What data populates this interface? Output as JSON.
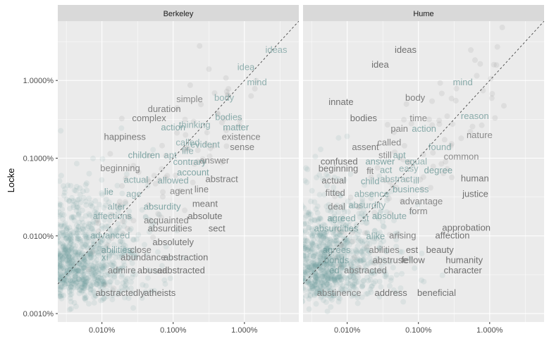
{
  "chart_data": {
    "type": "scatter",
    "ylabel": "Locke",
    "xlabel": "",
    "scale": "log10",
    "xlim": [
      0.0024,
      5.8
    ],
    "ylim": [
      0.00078,
      5.8
    ],
    "x_ticks": [
      0.01,
      0.1,
      1
    ],
    "x_tick_labels": [
      "0.010%",
      "0.100%",
      "1.000%"
    ],
    "y_ticks": [
      0.001,
      0.01,
      0.1,
      1
    ],
    "y_tick_labels": [
      "0.0010%",
      "0.0100%",
      "0.1000%",
      "1.0000%"
    ],
    "diagonal_reference": "y = x",
    "colors": {
      "panel_bg": "#ebebeb",
      "grid": "#ffffff",
      "strip_bg": "#d9d9d9",
      "points": "#6f9a9a",
      "word_near": "#5f8f8e",
      "word_far": "#707070"
    },
    "panels": [
      {
        "name": "Berkeley",
        "words": [
          {
            "text": "ideas",
            "x": 2.8,
            "y": 2.5
          },
          {
            "text": "idea",
            "x": 1.05,
            "y": 1.5
          },
          {
            "text": "mind",
            "x": 1.5,
            "y": 0.95
          },
          {
            "text": "body",
            "x": 0.52,
            "y": 0.6
          },
          {
            "text": "simple",
            "x": 0.17,
            "y": 0.58
          },
          {
            "text": "duration",
            "x": 0.075,
            "y": 0.43
          },
          {
            "text": "complex",
            "x": 0.046,
            "y": 0.33
          },
          {
            "text": "bodies",
            "x": 0.6,
            "y": 0.34
          },
          {
            "text": "thinking",
            "x": 0.2,
            "y": 0.27
          },
          {
            "text": "matter",
            "x": 0.76,
            "y": 0.25
          },
          {
            "text": "action",
            "x": 0.1,
            "y": 0.25
          },
          {
            "text": "happiness",
            "x": 0.021,
            "y": 0.19
          },
          {
            "text": "existence",
            "x": 0.9,
            "y": 0.19
          },
          {
            "text": "called",
            "x": 0.16,
            "y": 0.16
          },
          {
            "text": "evident",
            "x": 0.28,
            "y": 0.15
          },
          {
            "text": "sense",
            "x": 0.93,
            "y": 0.14
          },
          {
            "text": "life",
            "x": 0.16,
            "y": 0.125
          },
          {
            "text": "children",
            "x": 0.039,
            "y": 0.11
          },
          {
            "text": "apt",
            "x": 0.091,
            "y": 0.11
          },
          {
            "text": "answer",
            "x": 0.38,
            "y": 0.094
          },
          {
            "text": "contrary",
            "x": 0.17,
            "y": 0.09
          },
          {
            "text": "beginning",
            "x": 0.018,
            "y": 0.075
          },
          {
            "text": "account",
            "x": 0.19,
            "y": 0.066
          },
          {
            "text": "actual",
            "x": 0.03,
            "y": 0.053
          },
          {
            "text": "allowed",
            "x": 0.1,
            "y": 0.052
          },
          {
            "text": "abstract",
            "x": 0.48,
            "y": 0.054
          },
          {
            "text": "line",
            "x": 0.25,
            "y": 0.04
          },
          {
            "text": "lie",
            "x": 0.0125,
            "y": 0.037
          },
          {
            "text": "age",
            "x": 0.028,
            "y": 0.035
          },
          {
            "text": "agent",
            "x": 0.13,
            "y": 0.038
          },
          {
            "text": "meant",
            "x": 0.28,
            "y": 0.026
          },
          {
            "text": "alter",
            "x": 0.016,
            "y": 0.024
          },
          {
            "text": "absurdity",
            "x": 0.07,
            "y": 0.024
          },
          {
            "text": "affections",
            "x": 0.014,
            "y": 0.018
          },
          {
            "text": "absolute",
            "x": 0.28,
            "y": 0.018
          },
          {
            "text": "acquainted",
            "x": 0.08,
            "y": 0.016
          },
          {
            "text": "absurdities",
            "x": 0.09,
            "y": 0.0125
          },
          {
            "text": "sect",
            "x": 0.41,
            "y": 0.0125
          },
          {
            "text": "advanced",
            "x": 0.013,
            "y": 0.0102
          },
          {
            "text": "absolutely",
            "x": 0.1,
            "y": 0.0083
          },
          {
            "text": "abilities",
            "x": 0.016,
            "y": 0.0066
          },
          {
            "text": "close",
            "x": 0.035,
            "y": 0.0066
          },
          {
            "text": "xi",
            "x": 0.011,
            "y": 0.0053
          },
          {
            "text": "abundance",
            "x": 0.038,
            "y": 0.0053
          },
          {
            "text": "abstraction",
            "x": 0.15,
            "y": 0.0053
          },
          {
            "text": "admire",
            "x": 0.019,
            "y": 0.0036
          },
          {
            "text": "abuse",
            "x": 0.047,
            "y": 0.0036
          },
          {
            "text": "ad",
            "x": 0.07,
            "y": 0.0036
          },
          {
            "text": "abstracted",
            "x": 0.14,
            "y": 0.0036
          },
          {
            "text": "abstractedly",
            "x": 0.018,
            "y": 0.00185
          },
          {
            "text": "atheists",
            "x": 0.065,
            "y": 0.00185
          }
        ]
      },
      {
        "name": "Hume",
        "words": [
          {
            "text": "ideas",
            "x": 0.066,
            "y": 2.5
          },
          {
            "text": "idea",
            "x": 0.029,
            "y": 1.6
          },
          {
            "text": "mind",
            "x": 0.42,
            "y": 0.95
          },
          {
            "text": "body",
            "x": 0.09,
            "y": 0.6
          },
          {
            "text": "innate",
            "x": 0.0082,
            "y": 0.53
          },
          {
            "text": "reason",
            "x": 0.62,
            "y": 0.35
          },
          {
            "text": "time",
            "x": 0.1,
            "y": 0.33
          },
          {
            "text": "bodies",
            "x": 0.017,
            "y": 0.33
          },
          {
            "text": "pain",
            "x": 0.054,
            "y": 0.24
          },
          {
            "text": "action",
            "x": 0.12,
            "y": 0.24
          },
          {
            "text": "nature",
            "x": 0.72,
            "y": 0.2
          },
          {
            "text": "called",
            "x": 0.039,
            "y": 0.16
          },
          {
            "text": "assent",
            "x": 0.018,
            "y": 0.14
          },
          {
            "text": "found",
            "x": 0.2,
            "y": 0.14
          },
          {
            "text": "still",
            "x": 0.034,
            "y": 0.11
          },
          {
            "text": "apt",
            "x": 0.054,
            "y": 0.11
          },
          {
            "text": "common",
            "x": 0.4,
            "y": 0.105
          },
          {
            "text": "confused",
            "x": 0.0077,
            "y": 0.091
          },
          {
            "text": "answer",
            "x": 0.029,
            "y": 0.091
          },
          {
            "text": "equal",
            "x": 0.092,
            "y": 0.091
          },
          {
            "text": "beginning",
            "x": 0.0075,
            "y": 0.074
          },
          {
            "text": "fit",
            "x": 0.021,
            "y": 0.069
          },
          {
            "text": "act",
            "x": 0.035,
            "y": 0.071
          },
          {
            "text": "easy",
            "x": 0.073,
            "y": 0.074
          },
          {
            "text": "degree",
            "x": 0.19,
            "y": 0.07
          },
          {
            "text": "human",
            "x": 0.62,
            "y": 0.055
          },
          {
            "text": "actual",
            "x": 0.0065,
            "y": 0.052
          },
          {
            "text": "child",
            "x": 0.021,
            "y": 0.051
          },
          {
            "text": "abstract",
            "x": 0.049,
            "y": 0.054
          },
          {
            "text": "ill",
            "x": 0.093,
            "y": 0.052
          },
          {
            "text": "business",
            "x": 0.078,
            "y": 0.04
          },
          {
            "text": "justice",
            "x": 0.63,
            "y": 0.035
          },
          {
            "text": "fitted",
            "x": 0.0068,
            "y": 0.036
          },
          {
            "text": "absence",
            "x": 0.022,
            "y": 0.035
          },
          {
            "text": "advantage",
            "x": 0.11,
            "y": 0.028
          },
          {
            "text": "deal",
            "x": 0.0071,
            "y": 0.024
          },
          {
            "text": "absurdity",
            "x": 0.019,
            "y": 0.025
          },
          {
            "text": "form",
            "x": 0.1,
            "y": 0.021
          },
          {
            "text": "agreed",
            "x": 0.0083,
            "y": 0.017
          },
          {
            "text": "st",
            "x": 0.018,
            "y": 0.017
          },
          {
            "text": "absolute",
            "x": 0.039,
            "y": 0.018
          },
          {
            "text": "approbation",
            "x": 0.47,
            "y": 0.0128
          },
          {
            "text": "absurdities",
            "x": 0.007,
            "y": 0.0125
          },
          {
            "text": "alike",
            "x": 0.025,
            "y": 0.01
          },
          {
            "text": "arising",
            "x": 0.06,
            "y": 0.0102
          },
          {
            "text": "affection",
            "x": 0.3,
            "y": 0.0102
          },
          {
            "text": "agrees",
            "x": 0.0071,
            "y": 0.0066
          },
          {
            "text": "abilities",
            "x": 0.033,
            "y": 0.0066
          },
          {
            "text": "est",
            "x": 0.081,
            "y": 0.0066
          },
          {
            "text": "beauty",
            "x": 0.2,
            "y": 0.0066
          },
          {
            "text": "bonds",
            "x": 0.0071,
            "y": 0.0049
          },
          {
            "text": "abstruse",
            "x": 0.04,
            "y": 0.0049
          },
          {
            "text": "fellow",
            "x": 0.084,
            "y": 0.0049
          },
          {
            "text": "humanity",
            "x": 0.44,
            "y": 0.0049
          },
          {
            "text": "ed",
            "x": 0.0066,
            "y": 0.0036
          },
          {
            "text": "abstracted",
            "x": 0.018,
            "y": 0.0036
          },
          {
            "text": "character",
            "x": 0.42,
            "y": 0.0036
          },
          {
            "text": "abstinence",
            "x": 0.0077,
            "y": 0.00185
          },
          {
            "text": "address",
            "x": 0.041,
            "y": 0.00185
          },
          {
            "text": "beneficial",
            "x": 0.18,
            "y": 0.00185
          }
        ]
      }
    ]
  }
}
